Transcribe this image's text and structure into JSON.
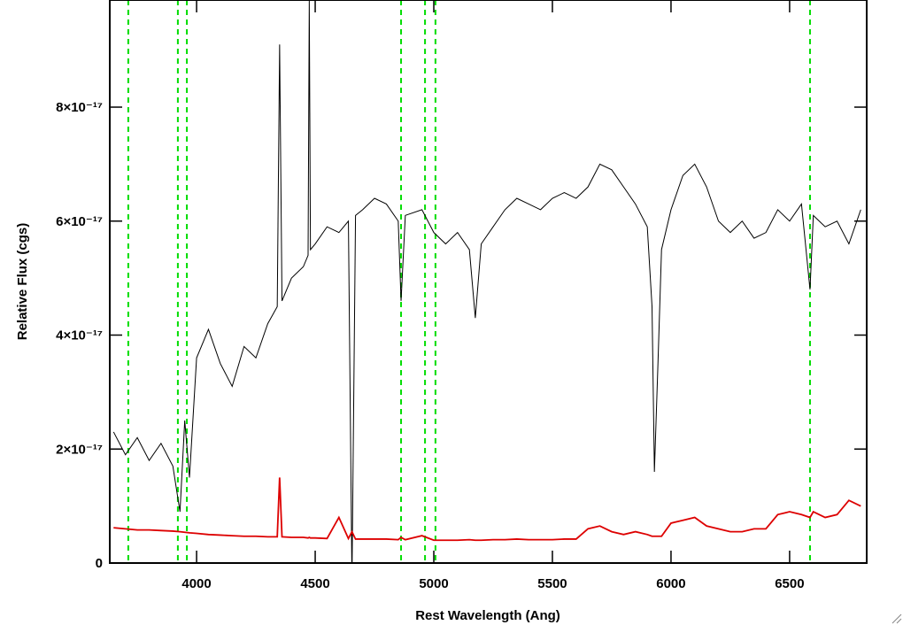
{
  "chart_data": {
    "type": "line",
    "xlabel": "Rest Wavelength (Ang)",
    "ylabel": "Relative Flux (cgs)",
    "xlim": [
      3634,
      6825
    ],
    "ylim": [
      0,
      9.88e-17
    ],
    "xticks": [
      4000,
      4500,
      5000,
      5500,
      6000,
      6500
    ],
    "yticks": [
      0,
      {
        "value": 2e-17,
        "label": "2×10⁻¹⁷"
      },
      {
        "value": 4e-17,
        "label": "4×10⁻¹⁷"
      },
      {
        "value": 6e-17,
        "label": "6×10⁻¹⁷"
      },
      {
        "value": 8e-17,
        "label": "8×10⁻¹⁷"
      }
    ],
    "reference_lines": {
      "color": "#00dd00",
      "x": [
        3712,
        3921,
        3959,
        4862,
        4963,
        5007,
        6586
      ]
    },
    "x": [
      3650,
      3700,
      3750,
      3800,
      3850,
      3900,
      3930,
      3950,
      3970,
      4000,
      4050,
      4100,
      4150,
      4200,
      4250,
      4300,
      4340,
      4350,
      4360,
      4400,
      4450,
      4470,
      4475,
      4480,
      4500,
      4550,
      4600,
      4640,
      4655,
      4670,
      4700,
      4750,
      4800,
      4850,
      4862,
      4880,
      4950,
      5000,
      5050,
      5100,
      5150,
      5175,
      5200,
      5250,
      5300,
      5350,
      5400,
      5450,
      5500,
      5550,
      5600,
      5650,
      5700,
      5750,
      5800,
      5850,
      5900,
      5920,
      5930,
      5945,
      5960,
      6000,
      6050,
      6100,
      6150,
      6200,
      6250,
      6300,
      6350,
      6400,
      6450,
      6500,
      6550,
      6586,
      6600,
      6650,
      6700,
      6750,
      6800
    ],
    "series": [
      {
        "color": "#000000",
        "values": [
          2.3e-17,
          1.9e-17,
          2.2e-17,
          1.8e-17,
          2.1e-17,
          1.7e-17,
          9e-18,
          2.5e-17,
          1.5e-17,
          3.6e-17,
          4.1e-17,
          3.5e-17,
          3.1e-17,
          3.8e-17,
          3.6e-17,
          4.2e-17,
          4.5e-17,
          9.1e-17,
          4.6e-17,
          5e-17,
          5.2e-17,
          5.4e-17,
          9.88e-17,
          5.5e-17,
          5.6e-17,
          5.9e-17,
          5.8e-17,
          6e-17,
          -3e-18,
          6.1e-17,
          6.2e-17,
          6.4e-17,
          6.3e-17,
          6e-17,
          4.6e-17,
          6.1e-17,
          6.2e-17,
          5.8e-17,
          5.6e-17,
          5.8e-17,
          5.5e-17,
          4.3e-17,
          5.6e-17,
          5.9e-17,
          6.2e-17,
          6.4e-17,
          6.3e-17,
          6.2e-17,
          6.4e-17,
          6.5e-17,
          6.4e-17,
          6.6e-17,
          7e-17,
          6.9e-17,
          6.6e-17,
          6.3e-17,
          5.9e-17,
          4.5e-17,
          1.6e-17,
          3.5e-17,
          5.5e-17,
          6.2e-17,
          6.8e-17,
          7e-17,
          6.6e-17,
          6e-17,
          5.8e-17,
          6e-17,
          5.7e-17,
          5.8e-17,
          6.2e-17,
          6e-17,
          6.3e-17,
          4.8e-17,
          6.1e-17,
          5.9e-17,
          6e-17,
          5.6e-17,
          6.2e-17
        ]
      },
      {
        "color": "#dd0000",
        "values": [
          6.2e-18,
          6e-18,
          5.8e-18,
          5.8e-18,
          5.7e-18,
          5.6e-18,
          5.5e-18,
          5.4e-18,
          5.3e-18,
          5.2e-18,
          5e-18,
          4.9e-18,
          4.8e-18,
          4.7e-18,
          4.7e-18,
          4.6e-18,
          4.6e-18,
          1.5e-17,
          4.6e-18,
          4.5e-18,
          4.5e-18,
          4.4e-18,
          4.5e-18,
          4.4e-18,
          4.4e-18,
          4.3e-18,
          8e-18,
          4.3e-18,
          5.5e-18,
          4.2e-18,
          4.2e-18,
          4.2e-18,
          4.2e-18,
          4.1e-18,
          4.5e-18,
          4.1e-18,
          4.8e-18,
          4e-18,
          4e-18,
          4e-18,
          4.1e-18,
          4e-18,
          4e-18,
          4.1e-18,
          4.1e-18,
          4.2e-18,
          4.1e-18,
          4.1e-18,
          4.1e-18,
          4.2e-18,
          4.2e-18,
          6e-18,
          6.5e-18,
          5.5e-18,
          5e-18,
          5.5e-18,
          5e-18,
          4.7e-18,
          4.7e-18,
          4.7e-18,
          4.7e-18,
          7e-18,
          7.5e-18,
          8e-18,
          6.5e-18,
          6e-18,
          5.5e-18,
          5.5e-18,
          6e-18,
          6e-18,
          8.5e-18,
          9e-18,
          8.5e-18,
          8e-18,
          9e-18,
          8e-18,
          8.5e-18,
          1.1e-17,
          1e-17
        ]
      }
    ]
  }
}
